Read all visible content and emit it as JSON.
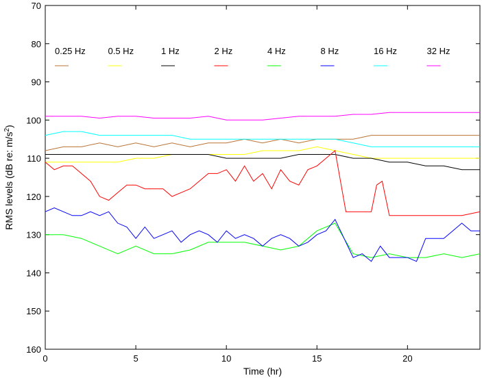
{
  "chart_data": {
    "type": "line",
    "title": "",
    "xlabel": "Time (hr)",
    "ylabel_main": "RMS levels (dB re: m/s",
    "ylabel_sup": "2",
    "ylabel_tail": ")",
    "xlim": [
      0,
      24
    ],
    "ylim": [
      70,
      160
    ],
    "y_inverted": true,
    "x_ticks": [
      0,
      5,
      10,
      15,
      20
    ],
    "y_ticks": [
      70,
      80,
      90,
      100,
      110,
      120,
      130,
      140,
      150,
      160
    ],
    "grid": false,
    "legend_position": "top",
    "series": [
      {
        "name": "0.25 Hz",
        "color": "#b87333",
        "x": [
          0,
          1,
          2,
          3,
          4,
          5,
          6,
          7,
          8,
          9,
          10,
          11,
          12,
          13,
          14,
          15,
          16,
          17,
          18,
          19,
          20,
          21,
          22,
          23,
          24
        ],
        "y": [
          108,
          107,
          107,
          106,
          107,
          106,
          107,
          106,
          107,
          106,
          106,
          105,
          106,
          105,
          106,
          105,
          105,
          105,
          104,
          104,
          104,
          104,
          104,
          104,
          104
        ]
      },
      {
        "name": "0.5 Hz",
        "color": "#ffff00",
        "x": [
          0,
          1,
          2,
          3,
          4,
          5,
          6,
          7,
          8,
          9,
          10,
          11,
          12,
          13,
          14,
          15,
          16,
          17,
          18,
          19,
          20,
          21,
          22,
          23,
          24
        ],
        "y": [
          111,
          111,
          111,
          111,
          111,
          110,
          110,
          109,
          109,
          109,
          109,
          109,
          108,
          108,
          108,
          107,
          108,
          109,
          110,
          110,
          110,
          110,
          110,
          110,
          110
        ]
      },
      {
        "name": "1 Hz",
        "color": "#000000",
        "x": [
          0,
          1,
          2,
          3,
          4,
          5,
          6,
          7,
          8,
          9,
          10,
          11,
          12,
          13,
          14,
          15,
          16,
          17,
          18,
          19,
          20,
          21,
          22,
          23,
          24
        ],
        "y": [
          109,
          109,
          109,
          109,
          109,
          109,
          109,
          109,
          109,
          109,
          110,
          110,
          110,
          110,
          109,
          109,
          109,
          110,
          110,
          111,
          111,
          112,
          112,
          113,
          113
        ]
      },
      {
        "name": "2 Hz",
        "color": "#ff0000",
        "x": [
          0,
          0.5,
          1,
          1.5,
          2,
          2.5,
          3,
          3.5,
          4,
          4.5,
          5,
          5.5,
          6,
          6.5,
          7,
          7.5,
          8,
          8.5,
          9,
          9.5,
          10,
          10.5,
          11,
          11.5,
          12,
          12.5,
          13,
          13.5,
          14,
          14.5,
          15,
          15.5,
          16,
          16.3,
          16.6,
          17,
          17.5,
          18,
          18.3,
          18.6,
          19,
          19.5,
          20,
          21,
          22,
          23,
          24
        ],
        "y": [
          111,
          113,
          112,
          112,
          114,
          116,
          120,
          121,
          119,
          117,
          117,
          118,
          118,
          118,
          120,
          119,
          118,
          116,
          114,
          114,
          113,
          116,
          112,
          116,
          114,
          118,
          113,
          116,
          117,
          113,
          112,
          110,
          108,
          116,
          124,
          124,
          124,
          124,
          117,
          116,
          125,
          125,
          125,
          125,
          125,
          125,
          124
        ]
      },
      {
        "name": "4 Hz",
        "color": "#00ff00",
        "x": [
          0,
          1,
          2,
          3,
          4,
          5,
          6,
          7,
          8,
          9,
          10,
          11,
          12,
          13,
          14,
          15,
          16,
          17,
          18,
          19,
          20,
          21,
          22,
          23,
          24
        ],
        "y": [
          130,
          130,
          131,
          133,
          135,
          133,
          135,
          135,
          134,
          132,
          132,
          132,
          133,
          134,
          133,
          129,
          127,
          135,
          136,
          135,
          136,
          136,
          135,
          136,
          135
        ]
      },
      {
        "name": "8 Hz",
        "color": "#0000ff",
        "x": [
          0,
          0.5,
          1,
          1.5,
          2,
          2.5,
          3,
          3.5,
          4,
          4.5,
          5,
          5.5,
          6,
          6.5,
          7,
          7.5,
          8,
          8.5,
          9,
          9.5,
          10,
          10.5,
          11,
          11.5,
          12,
          12.5,
          13,
          13.5,
          14,
          14.5,
          15,
          15.5,
          16,
          16.5,
          17,
          17.5,
          18,
          18.5,
          19,
          19.5,
          20,
          20.5,
          21,
          21.5,
          22,
          22.5,
          23,
          23.5,
          24
        ],
        "y": [
          124,
          123,
          124,
          125,
          125,
          124,
          125,
          124,
          127,
          128,
          131,
          128,
          131,
          130,
          129,
          132,
          130,
          129,
          130,
          132,
          129,
          131,
          130,
          131,
          133,
          131,
          130,
          131,
          133,
          132,
          130,
          129,
          126,
          131,
          136,
          135,
          137,
          133,
          136,
          136,
          136,
          137,
          131,
          131,
          131,
          129,
          127,
          129,
          129
        ]
      },
      {
        "name": "16 Hz",
        "color": "#00ffff",
        "x": [
          0,
          1,
          2,
          3,
          4,
          5,
          6,
          7,
          8,
          9,
          10,
          11,
          12,
          13,
          14,
          15,
          16,
          17,
          18,
          19,
          20,
          21,
          22,
          23,
          24
        ],
        "y": [
          104,
          103,
          103,
          104,
          104,
          104,
          104,
          104,
          105,
          105,
          105,
          105,
          105,
          105,
          105,
          105,
          105,
          106,
          107,
          107,
          107,
          107,
          107,
          107,
          107
        ]
      },
      {
        "name": "32 Hz",
        "color": "#ff00ff",
        "x": [
          0,
          1,
          2,
          3,
          4,
          5,
          6,
          7,
          8,
          9,
          10,
          11,
          12,
          13,
          14,
          15,
          16,
          17,
          18,
          19,
          20,
          21,
          22,
          23,
          24
        ],
        "y": [
          99,
          99,
          99,
          99.5,
          99,
          99,
          99.5,
          99.5,
          99.5,
          99,
          100,
          100,
          100,
          99.5,
          99,
          99,
          99,
          98.5,
          98.5,
          98,
          98,
          98,
          98,
          98,
          98
        ]
      }
    ]
  }
}
